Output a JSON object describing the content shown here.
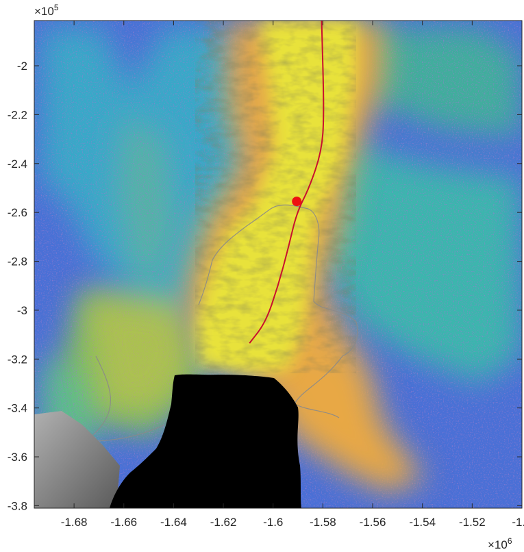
{
  "figure": {
    "type": "map",
    "y_multiplier": {
      "base": "×10",
      "exp": "5"
    },
    "x_multiplier": {
      "base": "×10",
      "exp": "6"
    }
  },
  "axes": {
    "x_ticks": [
      "-1.68",
      "-1.66",
      "-1.64",
      "-1.62",
      "-1.6",
      "-1.58",
      "-1.56",
      "-1.54",
      "-1.52",
      "-1.5"
    ],
    "y_ticks": [
      "-2",
      "-2.2",
      "-2.4",
      "-2.6",
      "-2.8",
      "-3",
      "-3.2",
      "-3.4",
      "-3.6",
      "-3.8"
    ],
    "x_tick_values": [
      -1.68,
      -1.66,
      -1.64,
      -1.62,
      -1.6,
      -1.58,
      -1.56,
      -1.54,
      -1.52,
      -1.5
    ],
    "y_tick_values": [
      -2.0,
      -2.2,
      -2.4,
      -2.6,
      -2.8,
      -3.0,
      -3.2,
      -3.4,
      -3.6,
      -3.8
    ],
    "xlim": [
      -1.696,
      -1.5
    ],
    "ylim": [
      -3.81,
      -1.815
    ],
    "y_direction": "normal"
  },
  "colors": {
    "flow_line": "#c8102e",
    "marker": "#ee1111",
    "grounding_line": "#8a8a8a",
    "ice_shelf_fast": "#e6e13a",
    "ice_slow": "#4f6fd8",
    "ice_medium": "#38b6a8",
    "ice_shoulder": "#e8b04a",
    "ocean_mask": "#000000",
    "hillshade_grey": "#8c8c8c"
  },
  "map_features": {
    "flowline": [
      [
        -1.5805,
        -1.815
      ],
      [
        -1.5795,
        -2.2
      ],
      [
        -1.5805,
        -2.35
      ],
      [
        -1.5855,
        -2.5
      ],
      [
        -1.5905,
        -2.6
      ],
      [
        -1.594,
        -2.75
      ],
      [
        -1.598,
        -2.9
      ],
      [
        -1.603,
        -3.05
      ],
      [
        -1.6095,
        -3.135
      ]
    ],
    "marker": [
      -1.5905,
      -2.555
    ]
  }
}
